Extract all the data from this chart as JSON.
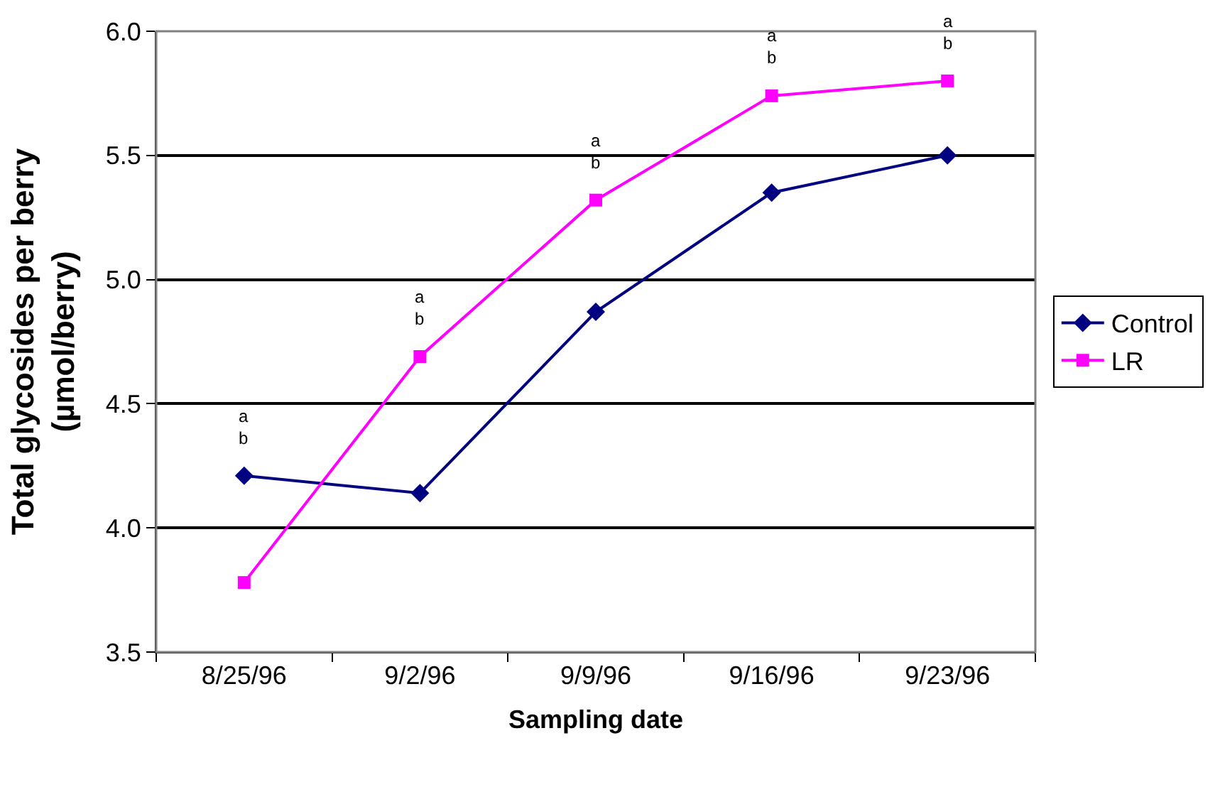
{
  "chart_data": {
    "type": "line",
    "xlabel": "Sampling date",
    "ylabel": "Total glycosides per berry\n(µmol/berry)",
    "categories": [
      "8/25/96",
      "9/2/96",
      "9/9/96",
      "9/16/96",
      "9/23/96"
    ],
    "series": [
      {
        "name": "Control",
        "color": "#000080",
        "marker": "diamond",
        "values": [
          4.21,
          4.14,
          4.87,
          5.35,
          5.5
        ]
      },
      {
        "name": "LR",
        "color": "#ff00ff",
        "marker": "square",
        "values": [
          3.78,
          4.69,
          5.32,
          5.74,
          5.8
        ]
      }
    ],
    "ylim": [
      3.5,
      6.0
    ],
    "yticks": [
      {
        "value": 3.5,
        "label": "3.5"
      },
      {
        "value": 4.0,
        "label": "4.0"
      },
      {
        "value": 4.5,
        "label": "4.5"
      },
      {
        "value": 5.0,
        "label": "5.0"
      },
      {
        "value": 5.5,
        "label": "5.5"
      },
      {
        "value": 6.0,
        "label": "6.0"
      }
    ],
    "grid": "y",
    "legend": "right",
    "line_style": "solid",
    "annotations": [
      "a\nb",
      "a\nb",
      "a\nb",
      "a\nb",
      "a\nb"
    ]
  }
}
